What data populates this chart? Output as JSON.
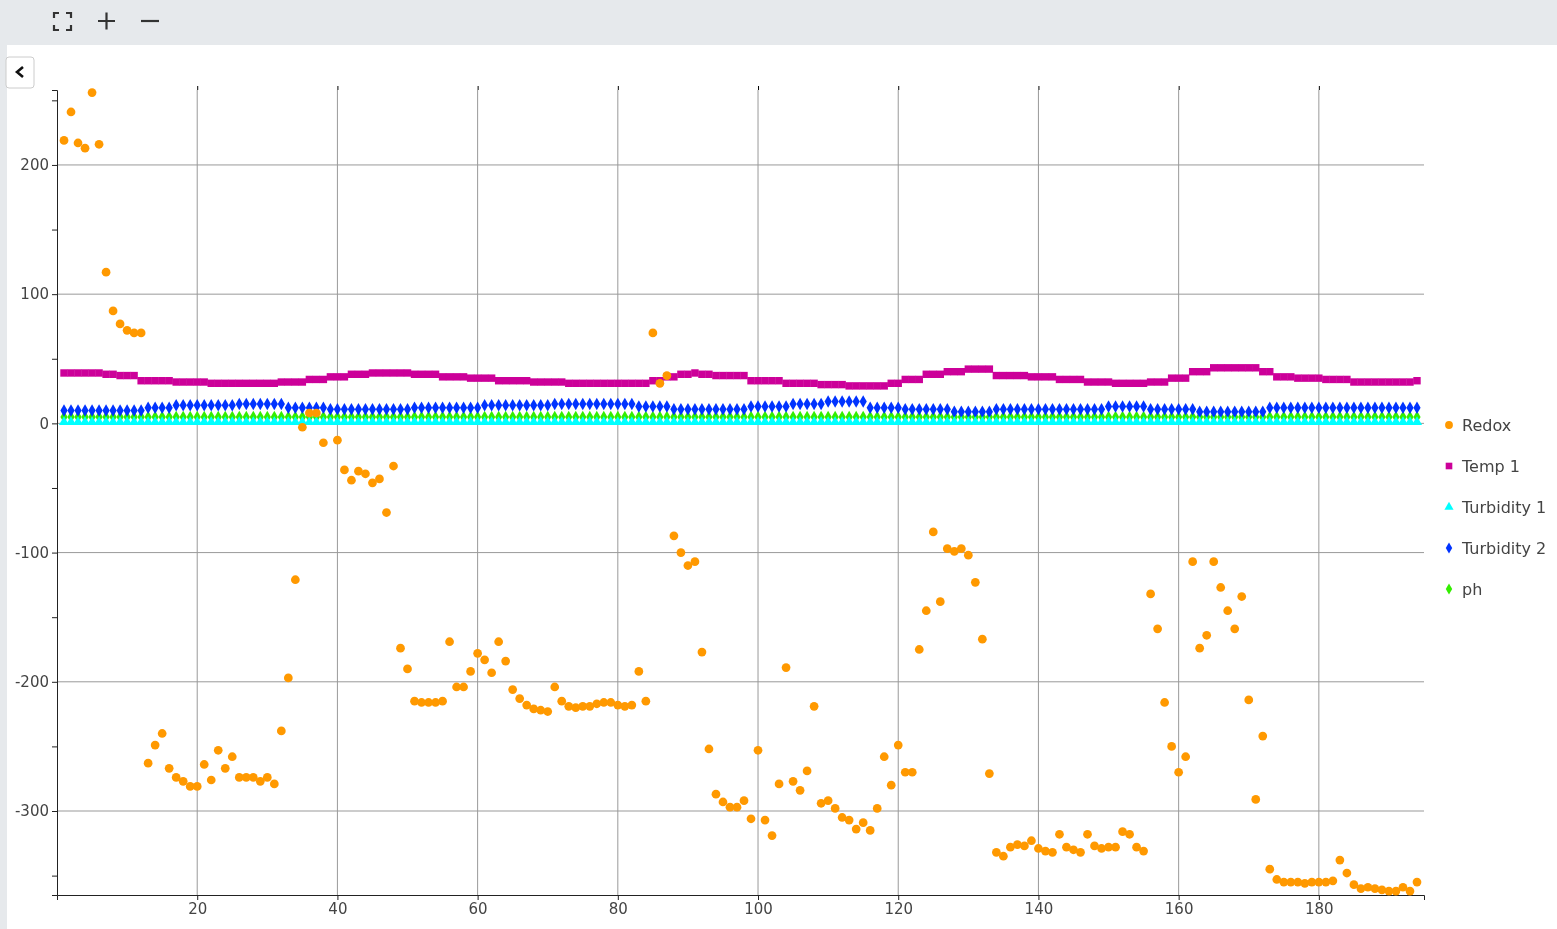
{
  "chart_data": {
    "type": "scatter",
    "xlim": [
      0,
      195
    ],
    "ylim": [
      -365,
      258
    ],
    "xticks": [
      20,
      40,
      60,
      80,
      100,
      120,
      140,
      160,
      180
    ],
    "yticks": [
      {
        "value": -350,
        "label": null
      },
      -300,
      {
        "value": -250,
        "label": null
      },
      -200,
      {
        "value": -150,
        "label": null
      },
      -100,
      {
        "value": -50,
        "label": null
      },
      0,
      {
        "value": 50,
        "label": null
      },
      100,
      {
        "value": 150,
        "label": null
      },
      200,
      {
        "value": 250,
        "label": null
      }
    ],
    "grid": true,
    "legend": "right",
    "series": [
      {
        "name": "Redox",
        "color": "#ff9900",
        "marker": "circle",
        "values": [
          219,
          241,
          217,
          213,
          256,
          216,
          117,
          87,
          77,
          72,
          70,
          70,
          -263,
          -249,
          -240,
          -267,
          -274,
          -277,
          -281,
          -281,
          -264,
          -276,
          -253,
          -267,
          -258,
          -274,
          -274,
          -274,
          -277,
          -274,
          -279,
          -238,
          -197,
          -121,
          -3,
          8,
          8,
          -15,
          null,
          -13,
          -36,
          -44,
          -37,
          -39,
          -46,
          -43,
          -69,
          -33,
          -174,
          -190,
          -215,
          -216,
          -216,
          -216,
          -215,
          -169,
          -204,
          -204,
          -192,
          -178,
          -183,
          -193,
          -169,
          -184,
          -206,
          -213,
          -218,
          -221,
          -222,
          -223,
          -204,
          -215,
          -219,
          -220,
          -219,
          -219,
          -217,
          -216,
          -216,
          -218,
          -219,
          -218,
          -192,
          -215,
          70,
          31,
          37,
          -87,
          -100,
          -110,
          -107,
          -177,
          -252,
          -287,
          -293,
          -297,
          -297,
          -292,
          -306,
          -253,
          -307,
          -319,
          -279,
          -189,
          -277,
          -284,
          -269,
          -219,
          -294,
          -292,
          -298,
          -305,
          -307,
          -314,
          -309,
          -315,
          -298,
          -258,
          -280,
          -249,
          -270,
          -270,
          -175,
          -145,
          -84,
          -138,
          -97,
          -99,
          -97,
          -102,
          -123,
          -167,
          -271,
          -332,
          -335,
          -328,
          -326,
          -327,
          -323,
          -329,
          -331,
          -332,
          -318,
          -328,
          -330,
          -332,
          -318,
          -327,
          -329,
          -328,
          -328,
          -316,
          -318,
          -328,
          -331,
          -132,
          -159,
          -216,
          -250,
          -270,
          -258,
          -107,
          -174,
          -164,
          -107,
          -127,
          -145,
          -159,
          -134,
          -214,
          -291,
          -242,
          -345,
          -353,
          -355,
          -355,
          -355,
          -356,
          -355,
          -355,
          -355,
          -354,
          -338,
          -348,
          -357,
          -360,
          -359,
          -360,
          -361,
          -362,
          -362,
          -359,
          -362,
          -355
        ]
      },
      {
        "name": "Temp 1",
        "color": "#cc0099",
        "marker": "square",
        "values": [
          39,
          39,
          39,
          39,
          39,
          39,
          38,
          38,
          37,
          37,
          37,
          33,
          33,
          33,
          33,
          33,
          32,
          32,
          32,
          32,
          32,
          31,
          31,
          31,
          31,
          31,
          31,
          31,
          31,
          31,
          31,
          32,
          32,
          32,
          32,
          34,
          34,
          34,
          36,
          36,
          36,
          38,
          38,
          38,
          39,
          39,
          39,
          39,
          39,
          39,
          38,
          38,
          38,
          38,
          36,
          36,
          36,
          36,
          35,
          35,
          35,
          35,
          33,
          33,
          33,
          33,
          33,
          32,
          32,
          32,
          32,
          32,
          31,
          31,
          31,
          31,
          31,
          31,
          31,
          31,
          31,
          31,
          31,
          31,
          33,
          33,
          36,
          36,
          38,
          38,
          39,
          38,
          38,
          37,
          37,
          37,
          37,
          37,
          33,
          33,
          33,
          33,
          33,
          31,
          31,
          31,
          31,
          31,
          30,
          30,
          30,
          30,
          29,
          29,
          29,
          29,
          29,
          29,
          31,
          31,
          34,
          34,
          34,
          38,
          38,
          38,
          40,
          40,
          40,
          42,
          42,
          42,
          42,
          37,
          37,
          37,
          37,
          37,
          36,
          36,
          36,
          36,
          34,
          34,
          34,
          34,
          32,
          32,
          32,
          32,
          31,
          31,
          31,
          31,
          31,
          32,
          32,
          32,
          35,
          35,
          35,
          40,
          40,
          40,
          43,
          43,
          43,
          43,
          43,
          43,
          43,
          40,
          40,
          36,
          36,
          36,
          35,
          35,
          35,
          35,
          34,
          34,
          34,
          34,
          32,
          32,
          32,
          32,
          32,
          32,
          32,
          32,
          32,
          33
        ]
      },
      {
        "name": "Turbidity 1",
        "color": "#00ffff",
        "marker": "triangle",
        "values": [
          1,
          1,
          1,
          1,
          1,
          1,
          1,
          1,
          1,
          1,
          1,
          1,
          1,
          1,
          1,
          1,
          1,
          1,
          1,
          1,
          1,
          1,
          1,
          1,
          1,
          1,
          1,
          1,
          1,
          1,
          1,
          1,
          1,
          1,
          1,
          1,
          1,
          1,
          1,
          1,
          1,
          1,
          1,
          1,
          1,
          1,
          1,
          1,
          1,
          1,
          1,
          1,
          1,
          1,
          1,
          1,
          1,
          1,
          1,
          1,
          1,
          1,
          1,
          1,
          1,
          1,
          1,
          1,
          1,
          1,
          1,
          1,
          1,
          1,
          1,
          1,
          1,
          1,
          1,
          1,
          1,
          1,
          1,
          1,
          1,
          1,
          1,
          1,
          1,
          1,
          1,
          1,
          1,
          1,
          1,
          1,
          1,
          1,
          1,
          1,
          1,
          1,
          1,
          1,
          1,
          1,
          1,
          1,
          1,
          1,
          1,
          1,
          1,
          1,
          1,
          1,
          1,
          1,
          1,
          1,
          1,
          1,
          1,
          1,
          1,
          1,
          1,
          1,
          1,
          1,
          1,
          1,
          1,
          1,
          1,
          1,
          1,
          1,
          1,
          1,
          1,
          1,
          1,
          1,
          1,
          1,
          1,
          1,
          1,
          1,
          1,
          1,
          1,
          1,
          1,
          1,
          1,
          1,
          1,
          1,
          1,
          1,
          1,
          1,
          1,
          1,
          1,
          1,
          1,
          1,
          1,
          1,
          1,
          1,
          1,
          1,
          1,
          1,
          1,
          1,
          1,
          1,
          1,
          1,
          1,
          1,
          1,
          1,
          1,
          1,
          1,
          1,
          1,
          1
        ]
      },
      {
        "name": "Turbidity 2",
        "color": "#0033ff",
        "marker": "diamond",
        "values": [
          10,
          10,
          10,
          10,
          10,
          10,
          10,
          10,
          10,
          10,
          10,
          10,
          12,
          12,
          12,
          12,
          14,
          14,
          14,
          14,
          14,
          14,
          14,
          14,
          14,
          15,
          15,
          15,
          15,
          15,
          15,
          15,
          12,
          12,
          12,
          12,
          12,
          12,
          11,
          11,
          11,
          11,
          11,
          11,
          11,
          11,
          11,
          11,
          11,
          11,
          12,
          12,
          12,
          12,
          12,
          12,
          12,
          12,
          12,
          12,
          14,
          14,
          14,
          14,
          14,
          14,
          14,
          14,
          14,
          14,
          15,
          15,
          15,
          15,
          15,
          15,
          15,
          15,
          15,
          15,
          15,
          15,
          13,
          13,
          13,
          13,
          13,
          11,
          11,
          11,
          11,
          11,
          11,
          11,
          11,
          11,
          11,
          11,
          13,
          13,
          13,
          13,
          13,
          13,
          15,
          15,
          15,
          15,
          15,
          17,
          17,
          17,
          17,
          17,
          17,
          12,
          12,
          12,
          12,
          12,
          11,
          11,
          11,
          11,
          11,
          11,
          11,
          9,
          9,
          9,
          9,
          9,
          9,
          11,
          11,
          11,
          11,
          11,
          11,
          11,
          11,
          11,
          11,
          11,
          11,
          11,
          11,
          11,
          11,
          13,
          13,
          13,
          13,
          13,
          13,
          11,
          11,
          11,
          11,
          11,
          11,
          11,
          9,
          9,
          9,
          9,
          9,
          9,
          9,
          9,
          9,
          9,
          12,
          12,
          12,
          12,
          12,
          12,
          12,
          12,
          12,
          12,
          12,
          12,
          12,
          12,
          12,
          12,
          12,
          12,
          12,
          12,
          12,
          12
        ]
      },
      {
        "name": "ph",
        "color": "#33ee00",
        "marker": "diamond",
        "values": [
          5,
          5,
          5,
          5,
          5,
          5,
          5,
          5,
          5,
          5,
          5,
          5,
          5,
          5,
          5,
          5,
          5,
          5,
          5,
          5,
          5,
          5,
          5,
          5,
          5,
          5,
          5,
          5,
          5,
          5,
          5,
          5,
          5,
          5,
          5,
          5,
          5,
          5,
          5,
          5,
          5,
          5,
          5,
          5,
          5,
          5,
          5,
          5,
          5,
          5,
          5,
          5,
          5,
          5,
          5,
          5,
          5,
          5,
          5,
          5,
          5,
          5,
          5,
          5,
          5,
          5,
          5,
          5,
          5,
          5,
          5,
          5,
          5,
          5,
          5,
          5,
          5,
          5,
          5,
          5,
          5,
          5,
          5,
          5,
          5,
          5,
          5,
          5,
          5,
          5,
          5,
          5,
          5,
          5,
          5,
          5,
          5,
          5,
          5,
          5,
          5,
          5,
          5,
          5,
          5,
          5,
          5,
          5,
          5,
          5,
          5,
          5,
          5,
          5,
          5,
          5,
          5,
          5,
          5,
          5,
          5,
          5,
          5,
          5,
          5,
          5,
          5,
          5,
          5,
          5,
          5,
          5,
          5,
          5,
          5,
          5,
          5,
          5,
          5,
          5,
          5,
          5,
          5,
          5,
          5,
          5,
          5,
          5,
          5,
          5,
          5,
          5,
          5,
          5,
          5,
          5,
          5,
          5,
          5,
          5,
          5,
          5,
          5,
          5,
          5,
          5,
          5,
          5,
          5,
          5,
          5,
          5,
          5,
          5,
          5,
          5,
          5,
          5,
          5,
          5,
          5,
          5,
          5,
          5,
          5,
          5,
          5,
          5,
          5,
          5,
          5,
          5,
          5,
          5
        ]
      }
    ],
    "x": [
      1,
      2,
      3,
      4,
      5,
      6,
      7,
      8,
      9,
      10,
      11,
      12,
      13,
      14,
      15,
      16,
      17,
      18,
      19,
      20,
      21,
      22,
      23,
      24,
      25,
      26,
      27,
      28,
      29,
      30,
      31,
      32,
      33,
      34,
      35,
      36,
      37,
      38,
      39,
      40,
      41,
      42,
      43,
      44,
      45,
      46,
      47,
      48,
      49,
      50,
      51,
      52,
      53,
      54,
      55,
      56,
      57,
      58,
      59,
      60,
      61,
      62,
      63,
      64,
      65,
      66,
      67,
      68,
      69,
      70,
      71,
      72,
      73,
      74,
      75,
      76,
      77,
      78,
      79,
      80,
      81,
      82,
      83,
      84,
      85,
      86,
      87,
      88,
      89,
      90,
      91,
      92,
      93,
      94,
      95,
      96,
      97,
      98,
      99,
      100,
      101,
      102,
      103,
      104,
      105,
      106,
      107,
      108,
      109,
      110,
      111,
      112,
      113,
      114,
      115,
      116,
      117,
      118,
      119,
      120,
      121,
      122,
      123,
      124,
      125,
      126,
      127,
      128,
      129,
      130,
      131,
      132,
      133,
      134,
      135,
      136,
      137,
      138,
      139,
      140,
      141,
      142,
      143,
      144,
      145,
      146,
      147,
      148,
      149,
      150,
      151,
      152,
      153,
      154,
      155,
      156,
      157,
      158,
      159,
      160,
      161,
      162,
      163,
      164,
      165,
      166,
      167,
      168,
      169,
      170,
      171,
      172,
      173,
      174,
      175,
      176,
      177,
      178,
      179,
      180,
      181,
      182,
      183,
      184,
      185,
      186,
      187,
      188,
      189,
      190,
      191,
      192,
      193,
      194
    ]
  }
}
